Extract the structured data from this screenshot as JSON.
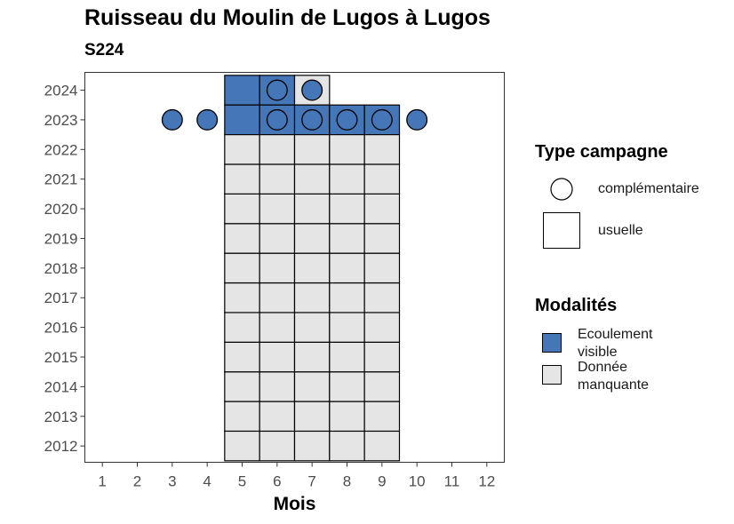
{
  "chart_data": {
    "type": "heatmap",
    "title": "Ruisseau du Moulin de Lugos à Lugos",
    "subtitle": "S224",
    "xlabel": "Mois",
    "ylabel": "",
    "x_ticks": [
      1,
      2,
      3,
      4,
      5,
      6,
      7,
      8,
      9,
      10,
      11,
      12
    ],
    "y_ticks": [
      2012,
      2013,
      2014,
      2015,
      2016,
      2017,
      2018,
      2019,
      2020,
      2021,
      2022,
      2023,
      2024
    ],
    "xlim": [
      0.5,
      12.5
    ],
    "ylim": [
      2011.45,
      2024.6
    ],
    "colors": {
      "Ecoulement visible": "#4577b8",
      "Donnée manquante": "#e5e5e5"
    },
    "legend_type": {
      "title": "Type campagne",
      "items": [
        {
          "label": "complémentaire",
          "shape": "circle"
        },
        {
          "label": "usuelle",
          "shape": "square"
        }
      ]
    },
    "legend_modalites": {
      "title": "Modalités",
      "items": [
        {
          "label": "Ecoulement visible",
          "color": "#4577b8"
        },
        {
          "label": "Donnée manquante",
          "color": "#e5e5e5"
        }
      ]
    },
    "usuelle": [
      {
        "year": 2024,
        "month": 5,
        "modalite": "Ecoulement visible"
      },
      {
        "year": 2024,
        "month": 6,
        "modalite": "Ecoulement visible"
      },
      {
        "year": 2024,
        "month": 7,
        "modalite": "Donnée manquante"
      },
      {
        "year": 2023,
        "month": 5,
        "modalite": "Ecoulement visible"
      },
      {
        "year": 2023,
        "month": 6,
        "modalite": "Ecoulement visible"
      },
      {
        "year": 2023,
        "month": 7,
        "modalite": "Ecoulement visible"
      },
      {
        "year": 2023,
        "month": 8,
        "modalite": "Ecoulement visible"
      },
      {
        "year": 2023,
        "month": 9,
        "modalite": "Ecoulement visible"
      },
      {
        "years": [
          2012,
          2022
        ],
        "months": [
          5,
          9
        ],
        "modalite": "Donnée manquante"
      }
    ],
    "complementaire": [
      {
        "year": 2024,
        "month": 6,
        "modalite": "Ecoulement visible"
      },
      {
        "year": 2024,
        "month": 7,
        "modalite": "Ecoulement visible"
      },
      {
        "year": 2023,
        "month": 3,
        "modalite": "Ecoulement visible"
      },
      {
        "year": 2023,
        "month": 4,
        "modalite": "Ecoulement visible"
      },
      {
        "year": 2023,
        "month": 6,
        "modalite": "Ecoulement visible"
      },
      {
        "year": 2023,
        "month": 7,
        "modalite": "Ecoulement visible"
      },
      {
        "year": 2023,
        "month": 8,
        "modalite": "Ecoulement visible"
      },
      {
        "year": 2023,
        "month": 9,
        "modalite": "Ecoulement visible"
      },
      {
        "year": 2023,
        "month": 10,
        "modalite": "Ecoulement visible"
      }
    ]
  }
}
